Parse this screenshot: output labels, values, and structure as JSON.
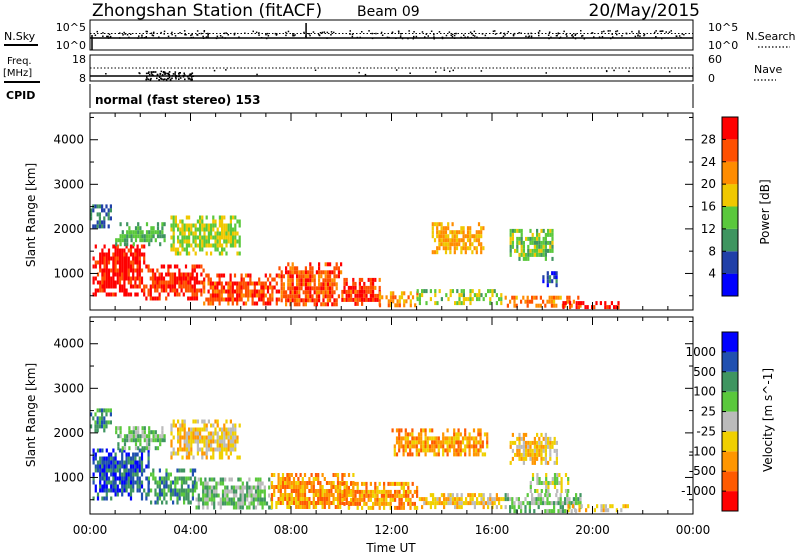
{
  "header": {
    "station": "Zhongshan Station (fitACF)",
    "beam": "Beam 09",
    "date": "20/May/2015"
  },
  "top_panels": {
    "nsky_label": "N.Sky",
    "nsky_ticks": [
      "10^5",
      "10^0"
    ],
    "nsearch_label": "N.Search",
    "nsearch_ticks": [
      "10^5",
      "10^0"
    ],
    "freq_label_1": "Freq.",
    "freq_label_2": "[MHz]",
    "freq_ticks": [
      "18",
      "8"
    ],
    "nave_label": "Nave",
    "nave_ticks": [
      "60",
      "0"
    ],
    "cpid_label": "CPID",
    "cpid_text": "normal (fast stereo) 153"
  },
  "colors": {
    "power_bins": [
      "#0000ff",
      "#2040a8",
      "#3f9560",
      "#5ac83c",
      "#f0c800",
      "#ff8c00",
      "#ff5000",
      "#ff0000"
    ],
    "velocity_bins": [
      "#ff0000",
      "#ff5a00",
      "#ff9600",
      "#f0d000",
      "#bbbbbb",
      "#5ac83c",
      "#3f9560",
      "#2050b0",
      "#0000ff"
    ]
  },
  "chart_data": [
    {
      "type": "heatmap",
      "name": "power",
      "ylabel": "Slant Range [km]",
      "yticks": [
        "1000",
        "2000",
        "3000",
        "4000"
      ],
      "ytick_values": [
        1000,
        2000,
        3000,
        4000
      ],
      "ylim": [
        180,
        4600
      ],
      "xlim_hours": [
        0,
        24
      ],
      "colorbar_label": "Power [dB]",
      "colorbar_ticks": [
        "4",
        "8",
        "12",
        "16",
        "20",
        "24",
        "28"
      ],
      "colorbar_range": [
        0,
        32
      ],
      "patches": [
        {
          "t": [
            0.1,
            2.2
          ],
          "r": [
            550,
            1650
          ],
          "v": 30
        },
        {
          "t": [
            2.2,
            4.5
          ],
          "r": [
            450,
            1200
          ],
          "v": 28
        },
        {
          "t": [
            4.5,
            7.5
          ],
          "r": [
            300,
            1000
          ],
          "v": 27
        },
        {
          "t": [
            7.5,
            10.0
          ],
          "r": [
            300,
            1250
          ],
          "v": 26
        },
        {
          "t": [
            10.0,
            11.5
          ],
          "r": [
            280,
            900
          ],
          "v": 27
        },
        {
          "t": [
            11.5,
            13.0
          ],
          "r": [
            280,
            600
          ],
          "v": 22
        },
        {
          "t": [
            13.0,
            16.5
          ],
          "r": [
            350,
            650
          ],
          "v": 15
        },
        {
          "t": [
            16.5,
            19.5
          ],
          "r": [
            250,
            500
          ],
          "v": 23
        },
        {
          "t": [
            18.8,
            21.0
          ],
          "r": [
            250,
            380
          ],
          "v": 29
        },
        {
          "t": [
            1.0,
            3.0
          ],
          "r": [
            1700,
            2150
          ],
          "v": 12
        },
        {
          "t": [
            3.2,
            6.0
          ],
          "r": [
            1450,
            2300
          ],
          "v": 16
        },
        {
          "t": [
            13.6,
            15.7
          ],
          "r": [
            1500,
            2150
          ],
          "v": 20
        },
        {
          "t": [
            16.7,
            18.4
          ],
          "r": [
            1300,
            2000
          ],
          "v": 14
        },
        {
          "t": [
            0.0,
            0.8
          ],
          "r": [
            2050,
            2550
          ],
          "v": 8
        },
        {
          "t": [
            18.0,
            18.6
          ],
          "r": [
            700,
            1050
          ],
          "v": 6
        }
      ]
    },
    {
      "type": "heatmap",
      "name": "velocity",
      "ylabel": "Slant Range [km]",
      "yticks": [
        "1000",
        "2000",
        "3000",
        "4000"
      ],
      "ytick_values": [
        1000,
        2000,
        3000,
        4000
      ],
      "ylim": [
        180,
        4600
      ],
      "xlim_hours": [
        0,
        24
      ],
      "xticks": [
        "00:00",
        "04:00",
        "08:00",
        "12:00",
        "16:00",
        "20:00",
        "00:00"
      ],
      "xtick_values": [
        0,
        4,
        8,
        12,
        16,
        20,
        24
      ],
      "xlabel": "Time UT",
      "colorbar_label": "Velocity [m s^-1]",
      "colorbar_ticks": [
        "-1000",
        "-500",
        "-100",
        "-25",
        "25",
        "100",
        "500",
        "1000"
      ],
      "patches": [
        {
          "t": [
            0.1,
            2.3
          ],
          "r": [
            550,
            1650
          ],
          "v": 7
        },
        {
          "t": [
            2.3,
            4.2
          ],
          "r": [
            450,
            1200
          ],
          "v": 6
        },
        {
          "t": [
            4.2,
            7.2
          ],
          "r": [
            300,
            1000
          ],
          "v": 5
        },
        {
          "t": [
            7.2,
            10.5
          ],
          "r": [
            300,
            1100
          ],
          "v": 2
        },
        {
          "t": [
            10.0,
            13.0
          ],
          "r": [
            280,
            900
          ],
          "v": 2
        },
        {
          "t": [
            13.0,
            16.5
          ],
          "r": [
            300,
            650
          ],
          "v": 3
        },
        {
          "t": [
            16.5,
            19.5
          ],
          "r": [
            250,
            650
          ],
          "v": 5
        },
        {
          "t": [
            19.0,
            21.5
          ],
          "r": [
            250,
            400
          ],
          "v": 3
        },
        {
          "t": [
            1.0,
            3.0
          ],
          "r": [
            1700,
            2150
          ],
          "v": 5
        },
        {
          "t": [
            3.2,
            6.0
          ],
          "r": [
            1450,
            2300
          ],
          "v": 3
        },
        {
          "t": [
            12.0,
            15.8
          ],
          "r": [
            1500,
            2100
          ],
          "v": 2
        },
        {
          "t": [
            16.7,
            18.6
          ],
          "r": [
            1300,
            2000
          ],
          "v": 3
        },
        {
          "t": [
            0.0,
            0.8
          ],
          "r": [
            2050,
            2550
          ],
          "v": 6
        },
        {
          "t": [
            17.5,
            19.0
          ],
          "r": [
            700,
            1100
          ],
          "v": 4
        }
      ]
    }
  ]
}
